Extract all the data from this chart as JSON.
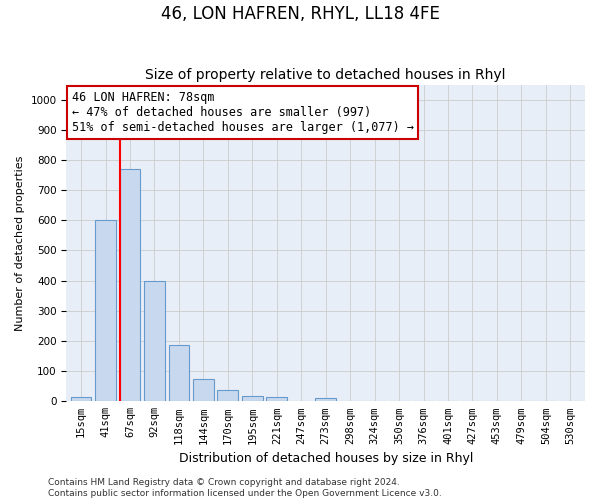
{
  "title": "46, LON HAFREN, RHYL, LL18 4FE",
  "subtitle": "Size of property relative to detached houses in Rhyl",
  "xlabel": "Distribution of detached houses by size in Rhyl",
  "ylabel": "Number of detached properties",
  "categories": [
    "15sqm",
    "41sqm",
    "67sqm",
    "92sqm",
    "118sqm",
    "144sqm",
    "170sqm",
    "195sqm",
    "221sqm",
    "247sqm",
    "273sqm",
    "298sqm",
    "324sqm",
    "350sqm",
    "376sqm",
    "401sqm",
    "427sqm",
    "453sqm",
    "479sqm",
    "504sqm",
    "530sqm"
  ],
  "values": [
    14,
    600,
    770,
    400,
    185,
    75,
    38,
    18,
    13,
    0,
    10,
    0,
    0,
    0,
    0,
    0,
    0,
    0,
    0,
    0,
    0
  ],
  "bar_color": "#c8d9ef",
  "bar_edge_color": "#6699cc",
  "red_line_x": 2.0,
  "annotation_text": "46 LON HAFREN: 78sqm\n← 47% of detached houses are smaller (997)\n51% of semi-detached houses are larger (1,077) →",
  "annotation_box_facecolor": "#ffffff",
  "annotation_box_edgecolor": "#cc0000",
  "ylim": [
    0,
    1050
  ],
  "yticks": [
    0,
    100,
    200,
    300,
    400,
    500,
    600,
    700,
    800,
    900,
    1000
  ],
  "footer": "Contains HM Land Registry data © Crown copyright and database right 2024.\nContains public sector information licensed under the Open Government Licence v3.0.",
  "title_fontsize": 12,
  "subtitle_fontsize": 10,
  "xlabel_fontsize": 9,
  "ylabel_fontsize": 8,
  "tick_fontsize": 7.5,
  "annotation_fontsize": 8.5,
  "footer_fontsize": 6.5,
  "grid_color": "#cccccc",
  "background_color": "#e8eef8"
}
